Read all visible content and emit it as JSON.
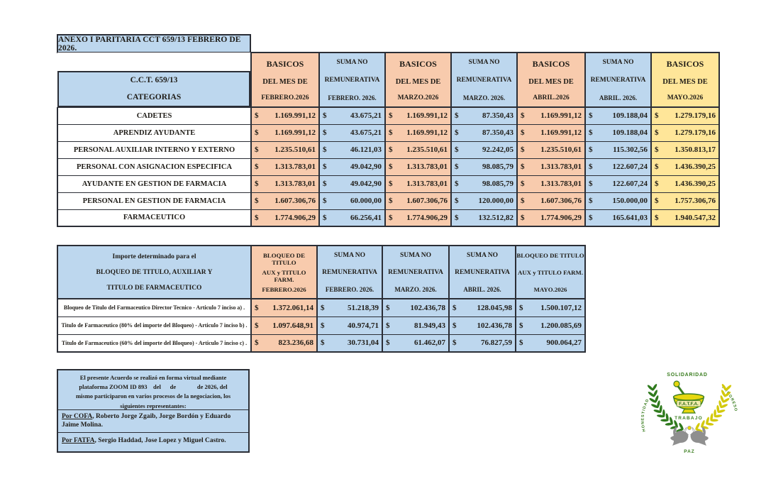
{
  "title": "ANEXO I PARITARIA CCT 659/13 FEBRERO DE 2026.",
  "table1": {
    "currency": "$",
    "corner": {
      "line1": "C.C.T.  659/13",
      "line2": "CATEGORIAS"
    },
    "columns": [
      {
        "l1": "BASICOS",
        "l2": "DEL MES DE",
        "l3": "FEBRERO.2026",
        "type": "basicos"
      },
      {
        "l1": "SUMA NO",
        "l2": "REMUNERATIVA",
        "l3": "FEBRERO. 2026.",
        "type": "suma"
      },
      {
        "l1": "BASICOS",
        "l2": "DEL MES DE",
        "l3": "MARZO.2026",
        "type": "basicos"
      },
      {
        "l1": "SUMA NO",
        "l2": "REMUNERATIVA",
        "l3": "MARZO. 2026.",
        "type": "suma"
      },
      {
        "l1": "BASICOS",
        "l2": "DEL MES DE",
        "l3": "ABRIL.2026",
        "type": "basicos"
      },
      {
        "l1": "SUMA NO",
        "l2": "REMUNERATIVA",
        "l3": "ABRIL. 2026.",
        "type": "suma"
      },
      {
        "l1": "BASICOS",
        "l2": "DEL MES DE",
        "l3": "MAYO.2026",
        "type": "mayo"
      }
    ],
    "rows": [
      {
        "category": "CADETES",
        "values": [
          "1.169.991,12",
          "43.675,21",
          "1.169.991,12",
          "87.350,43",
          "1.169.991,12",
          "109.188,04",
          "1.279.179,16"
        ]
      },
      {
        "category": "APRENDIZ AYUDANTE",
        "values": [
          "1.169.991,12",
          "43.675,21",
          "1.169.991,12",
          "87.350,43",
          "1.169.991,12",
          "109.188,04",
          "1.279.179,16"
        ]
      },
      {
        "category": "PERSONAL AUXILIAR INTERNO Y EXTERNO",
        "values": [
          "1.235.510,61",
          "46.121,03",
          "1.235.510,61",
          "92.242,05",
          "1.235.510,61",
          "115.302,56",
          "1.350.813,17"
        ]
      },
      {
        "category": "PERSONAL CON ASIGNACION ESPECIFICA",
        "values": [
          "1.313.783,01",
          "49.042,90",
          "1.313.783,01",
          "98.085,79",
          "1.313.783,01",
          "122.607,24",
          "1.436.390,25"
        ]
      },
      {
        "category": "AYUDANTE EN GESTION  DE FARMACIA",
        "values": [
          "1.313.783,01",
          "49.042,90",
          "1.313.783,01",
          "98.085,79",
          "1.313.783,01",
          "122.607,24",
          "1.436.390,25"
        ]
      },
      {
        "category": "PERSONAL EN GESTION DE FARMACIA",
        "values": [
          "1.607.306,76",
          "60.000,00",
          "1.607.306,76",
          "120.000,00",
          "1.607.306,76",
          "150.000,00",
          "1.757.306,76"
        ]
      },
      {
        "category": "FARMACEUTICO",
        "values": [
          "1.774.906,29",
          "66.256,41",
          "1.774.906,29",
          "132.512,82",
          "1.774.906,29",
          "165.641,03",
          "1.940.547,32"
        ]
      }
    ]
  },
  "table2": {
    "currency": "$",
    "corner": [
      "Importe determinado para el",
      "BLOQUEO  DE TITULO, AUXILIAR Y",
      "TITULO DE FARMACEUTICO"
    ],
    "columns": [
      {
        "l1": "BLOQUEO DE TITULO",
        "l2": "AUX y TITULO FARM.",
        "l3": "FEBRERO.2026",
        "type": "basicos farm"
      },
      {
        "l1": "SUMA NO",
        "l2": "REMUNERATIVA",
        "l3": "FEBRERO. 2026.",
        "type": "suma"
      },
      {
        "l1": "SUMA NO",
        "l2": "REMUNERATIVA",
        "l3": "MARZO. 2026.",
        "type": "suma"
      },
      {
        "l1": "SUMA NO",
        "l2": "REMUNERATIVA",
        "l3": "ABRIL. 2026.",
        "type": "suma"
      },
      {
        "l1": "BLOQUEO DE TITULO",
        "l2": "AUX y TITULO FARM.",
        "l3": "MAYO.2026",
        "type": "suma farm"
      }
    ],
    "rows": [
      {
        "label": "Bloqueo de Titulo del Farmaceutico Director Tecnico - Articulo 7 inciso a) .",
        "values": [
          "1.372.061,14",
          "51.218,39",
          "102.436,78",
          "128.045,98",
          "1.500.107,12"
        ]
      },
      {
        "label": "Titulo de Farmaceutico (80% del importe del Bloqueo) - Articulo 7 inciso b) .",
        "values": [
          "1.097.648,91",
          "40.974,71",
          "81.949,43",
          "102.436,78",
          "1.200.085,69"
        ]
      },
      {
        "label": "Titulo de Farmaceutico (60% del importe del Bloqueo) - Articulo 7 inciso c) .",
        "values": [
          "823.236,68",
          "30.731,04",
          "61.462,07",
          "76.827,59",
          "900.064,27"
        ]
      }
    ]
  },
  "footer": {
    "paragraph": "El presente Acuerdo se realizó en forma virtual mediante\nplataforma ZOOM ID 893    del      de              de 2026, del\nmismo participaron en varios procesos de la negociacion, los\nsiguientes representantes:",
    "cofa_prefix": "Por COFA",
    "cofa_rest": ", Roberto Jorge Zgaib, Jorge Bordón y Eduardo Jaime Molina.",
    "fatfa_prefix": "Por FATFA",
    "fatfa_rest": ", Sergio Haddad, Jose Lopez y Miguel Castro."
  },
  "logo": {
    "top": "SOLIDARIDAD",
    "center": "F.A.T.F.A.",
    "middle": "TRABAJO",
    "left": "HONESTIDAD",
    "right": "PROGRESO",
    "bottom": "PAZ"
  },
  "colors": {
    "blue": "#bdd7ee",
    "peach": "#f8cbad",
    "yellow": "#ffe699",
    "border": "#2b2e36",
    "logo_green": "#3a7d1f",
    "logo_yellow": "#d6cc0e",
    "logo_grey": "#8f8f8f"
  }
}
